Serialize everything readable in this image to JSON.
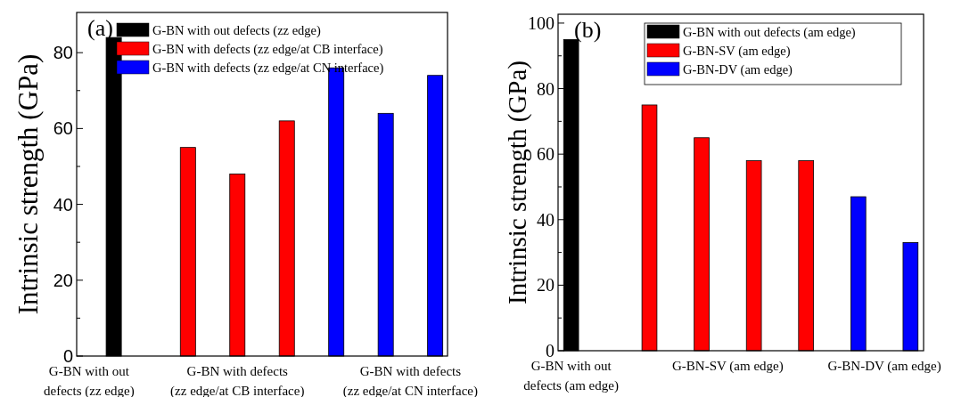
{
  "chart_data": [
    {
      "type": "bar",
      "ylabel": "Intrinsic strength (GPa)",
      "annotations": [
        "(a)"
      ],
      "categories": [
        "G-BN with out\ndefects (zz edge)",
        null,
        null,
        null,
        null,
        null,
        "G-BN with defects\n(zz edge/at CB interface)",
        null,
        null,
        null,
        null,
        null,
        null,
        "G-BN with defects\n(zz edge/at CN interface)",
        null
      ],
      "ylim": [
        0,
        90.6
      ],
      "yticks": [
        0,
        {
          "value": 10,
          "label": null
        },
        20,
        {
          "value": 30,
          "label": null
        },
        40,
        {
          "value": 50,
          "label": null
        },
        60,
        {
          "value": 70,
          "label": null
        },
        80
      ],
      "legend": "top left",
      "series": [
        {
          "name": "G-BN with out defects (zz edge)",
          "color": "#000000",
          "values": [
            null,
            84,
            null,
            null,
            null,
            null,
            null,
            null,
            null,
            null,
            null,
            null,
            null,
            null,
            null
          ]
        },
        {
          "name": "G-BN with defects (zz edge/at CB interface)",
          "color": "#ff0000",
          "values": [
            null,
            null,
            null,
            null,
            55,
            null,
            48,
            null,
            62,
            null,
            null,
            null,
            null,
            null,
            null
          ]
        },
        {
          "name": "G-BN with defects (zz edge/at CN interface)",
          "color": "#0000ff",
          "values": [
            null,
            null,
            null,
            null,
            null,
            null,
            null,
            null,
            null,
            null,
            76,
            null,
            64,
            null,
            74
          ]
        }
      ]
    },
    {
      "type": "bar",
      "ylabel": "Intrinsic strength (GPa)",
      "annotations": [
        "(b)"
      ],
      "categories": [
        "G-BN with out\ndefects (am edge)",
        null,
        null,
        null,
        null,
        null,
        "G-BN-SV (am edge)",
        null,
        null,
        null,
        null,
        null,
        "G-BN-DV (am edge)",
        null
      ],
      "ylim": [
        0,
        102.7
      ],
      "yticks": [
        0,
        {
          "value": 10,
          "label": null
        },
        20,
        {
          "value": 30,
          "label": null
        },
        40,
        {
          "value": 50,
          "label": null
        },
        60,
        {
          "value": 70,
          "label": null
        },
        80,
        {
          "value": 90,
          "label": null
        },
        100
      ],
      "legend": "top right",
      "series": [
        {
          "name": "G-BN with out defects (am edge)",
          "color": "#000000",
          "values": [
            95,
            null,
            null,
            null,
            null,
            null,
            null,
            null,
            null,
            null,
            null,
            null,
            null,
            null
          ]
        },
        {
          "name": "G-BN-SV (am edge)",
          "color": "#ff0000",
          "values": [
            null,
            null,
            null,
            75,
            null,
            65,
            null,
            58,
            null,
            58,
            null,
            null,
            null,
            null
          ]
        },
        {
          "name": "G-BN-DV (am edge)",
          "color": "#0000ff",
          "values": [
            null,
            null,
            null,
            null,
            null,
            null,
            null,
            null,
            null,
            null,
            null,
            47,
            null,
            33
          ]
        }
      ]
    }
  ]
}
